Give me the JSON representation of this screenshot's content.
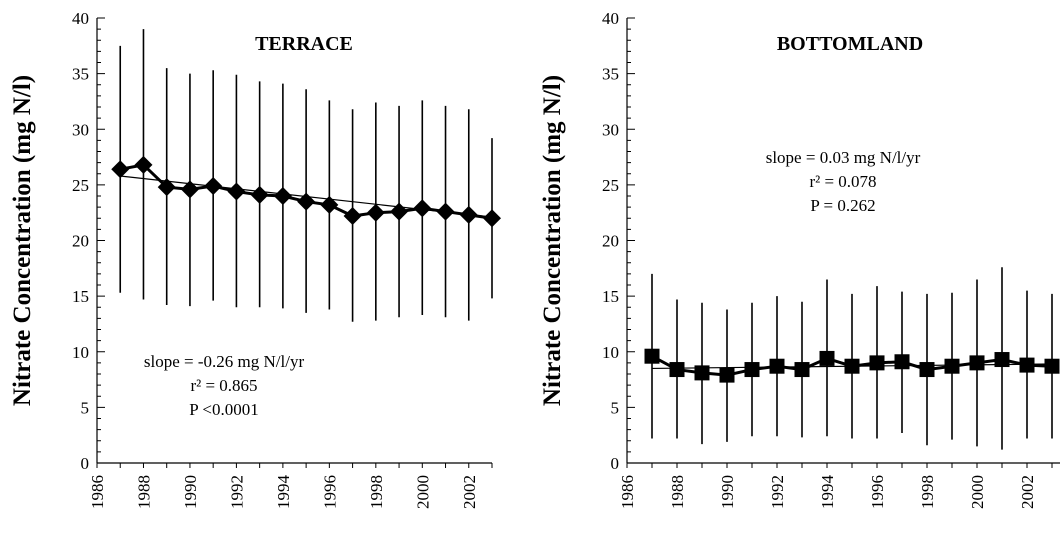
{
  "chart_data": [
    {
      "type": "line",
      "title": "TERRACE",
      "ylabel": "Nitrate Concentration (mg N/l)",
      "xlabel": "",
      "ylim": [
        0,
        40
      ],
      "yticks": [
        "0",
        "5",
        "10",
        "15",
        "20",
        "25",
        "30",
        "35",
        "40"
      ],
      "xlim": [
        1986,
        2003
      ],
      "xticks": [
        "1986",
        "1988",
        "1990",
        "1992",
        "1994",
        "1996",
        "1998",
        "2000",
        "2002"
      ],
      "marker": "diamond",
      "grid": false,
      "x": [
        1987,
        1988,
        1989,
        1990,
        1991,
        1992,
        1993,
        1994,
        1995,
        1996,
        1997,
        1998,
        1999,
        2000,
        2001,
        2002,
        2003
      ],
      "series": [
        {
          "values": [
            26.4,
            26.8,
            24.8,
            24.6,
            24.9,
            24.4,
            24.1,
            24.0,
            23.5,
            23.2,
            22.2,
            22.5,
            22.6,
            22.9,
            22.6,
            22.3,
            22.0
          ],
          "error_low": [
            15.3,
            14.7,
            14.2,
            14.1,
            14.6,
            14.0,
            14.0,
            13.9,
            13.5,
            13.8,
            12.7,
            12.8,
            13.1,
            13.3,
            13.1,
            12.8,
            14.8
          ],
          "error_high": [
            37.5,
            39.0,
            35.5,
            35.0,
            35.3,
            34.9,
            34.3,
            34.1,
            33.6,
            32.6,
            31.8,
            32.4,
            32.1,
            32.6,
            32.1,
            31.8,
            29.2
          ],
          "color": "#000000"
        }
      ],
      "trendline": {
        "start": 25.8,
        "end": 22.1
      },
      "annotation": [
        "slope = -0.26 mg N/l/yr",
        "r² = 0.865",
        "P <0.0001"
      ]
    },
    {
      "type": "line",
      "title": "BOTTOMLAND",
      "ylabel": "Nitrate Concentration (mg N/l)",
      "xlabel": "",
      "ylim": [
        0,
        40
      ],
      "yticks": [
        "0",
        "5",
        "10",
        "15",
        "20",
        "25",
        "30",
        "35",
        "40"
      ],
      "xlim": [
        1986,
        2003
      ],
      "xticks": [
        "1986",
        "1988",
        "1990",
        "1992",
        "1994",
        "1996",
        "1998",
        "2000",
        "2002"
      ],
      "marker": "square",
      "grid": false,
      "x": [
        1987,
        1988,
        1989,
        1990,
        1991,
        1992,
        1993,
        1994,
        1995,
        1996,
        1997,
        1998,
        1999,
        2000,
        2001,
        2002,
        2003
      ],
      "series": [
        {
          "values": [
            9.6,
            8.4,
            8.1,
            7.9,
            8.4,
            8.7,
            8.4,
            9.4,
            8.7,
            9.0,
            9.1,
            8.4,
            8.7,
            9.0,
            9.3,
            8.8,
            8.7
          ],
          "error_low": [
            2.2,
            2.2,
            1.7,
            1.9,
            2.4,
            2.4,
            2.3,
            2.4,
            2.2,
            2.2,
            2.7,
            1.6,
            2.1,
            1.5,
            1.2,
            2.2,
            2.2
          ],
          "error_high": [
            17.0,
            14.7,
            14.4,
            13.8,
            14.4,
            15.0,
            14.5,
            16.5,
            15.2,
            15.9,
            15.4,
            15.2,
            15.3,
            16.5,
            17.6,
            15.5,
            15.2
          ],
          "color": "#000000"
        }
      ],
      "trendline": {
        "start": 8.5,
        "end": 8.9
      },
      "annotation": [
        "slope = 0.03 mg N/l/yr",
        "r² = 0.078",
        "P = 0.262"
      ]
    }
  ]
}
